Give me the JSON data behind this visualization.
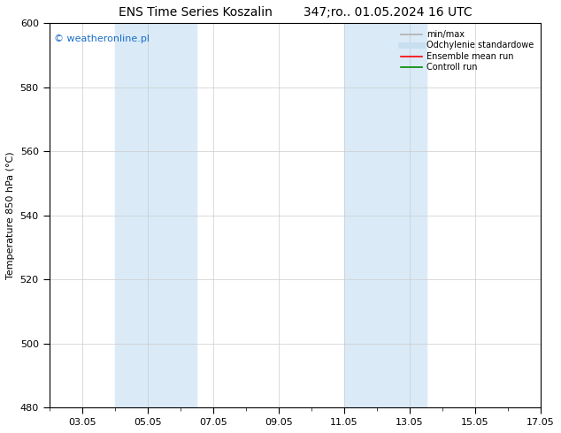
{
  "title": "ENS Time Series Koszalin        347;ro.. 01.05.2024 16 UTC",
  "ylabel": "Temperature 850 hPa (°C)",
  "ylim": [
    480,
    600
  ],
  "yticks": [
    480,
    500,
    520,
    540,
    560,
    580,
    600
  ],
  "xtick_positions": [
    1,
    3,
    5,
    7,
    9,
    11,
    13,
    15
  ],
  "xtick_labels": [
    "03.05",
    "05.05",
    "07.05",
    "09.05",
    "11.05",
    "13.05",
    "15.05",
    "17.05"
  ],
  "xlim": [
    0,
    15
  ],
  "watermark": "© weatheronline.pl",
  "watermark_color": "#1a6ec7",
  "background_color": "#ffffff",
  "plot_bg_color": "#ffffff",
  "shaded_bands": [
    {
      "x_start": 2.0,
      "x_end": 4.5,
      "color": "#daeaf7"
    },
    {
      "x_start": 9.0,
      "x_end": 10.0,
      "color": "#daeaf7"
    },
    {
      "x_start": 10.0,
      "x_end": 11.5,
      "color": "#daeaf7"
    }
  ],
  "legend_entries": [
    {
      "label": "min/max",
      "color": "#b0b0b0",
      "lw": 1.2,
      "style": "solid"
    },
    {
      "label": "Odchylenie standardowe",
      "color": "#c8dff0",
      "lw": 5,
      "style": "solid"
    },
    {
      "label": "Ensemble mean run",
      "color": "#ff0000",
      "lw": 1.2,
      "style": "solid"
    },
    {
      "label": "Controll run",
      "color": "#008800",
      "lw": 1.2,
      "style": "solid"
    }
  ],
  "grid_color": "#cccccc",
  "grid_lw": 0.5,
  "tick_fontsize": 8,
  "ylabel_fontsize": 8,
  "title_fontsize": 10,
  "watermark_fontsize": 8,
  "legend_fontsize": 7
}
